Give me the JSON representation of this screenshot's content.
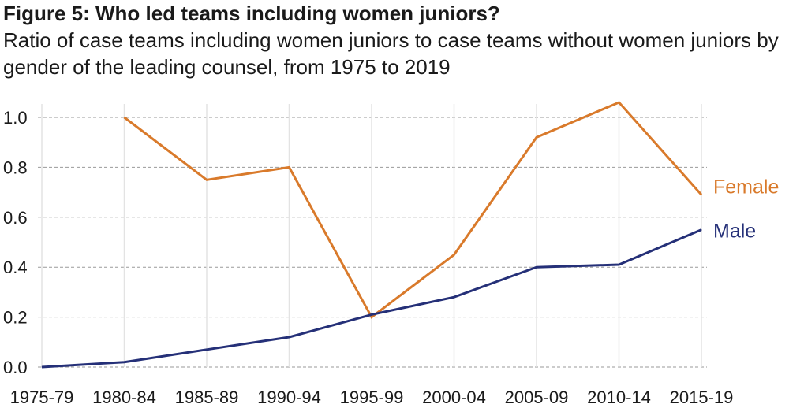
{
  "title": "Figure 5: Who led teams including women juniors?",
  "subtitle": "Ratio of case teams including women juniors to case teams without women juniors by gender of the leading counsel, from 1975 to 2019",
  "chart_data": {
    "type": "line",
    "title": "Figure 5: Who led teams including women juniors?",
    "subtitle": "Ratio of case teams including women juniors to case teams without women juniors by gender of the leading counsel, from 1975 to 2019",
    "categories": [
      "1975-79",
      "1980-84",
      "1985-89",
      "1990-94",
      "1995-99",
      "2000-04",
      "2005-09",
      "2010-14",
      "2015-19"
    ],
    "series": [
      {
        "name": "Female",
        "color": "#d97a2b",
        "values": [
          null,
          1.0,
          0.75,
          0.8,
          0.2,
          0.45,
          0.92,
          1.06,
          0.69
        ]
      },
      {
        "name": "Male",
        "color": "#253078",
        "values": [
          0.0,
          0.02,
          0.07,
          0.12,
          0.21,
          0.28,
          0.4,
          0.41,
          0.55
        ]
      }
    ],
    "yticks": [
      0.0,
      0.2,
      0.4,
      0.6,
      0.8,
      1.0
    ],
    "ytick_labels": [
      "0.0",
      "0.2",
      "0.4",
      "0.6",
      "0.8",
      "1.0"
    ],
    "ylim": [
      0,
      1.06
    ],
    "xlabel": "",
    "ylabel": "",
    "grid": "horizontal dashed",
    "legend": "labels at line ends (right)"
  }
}
